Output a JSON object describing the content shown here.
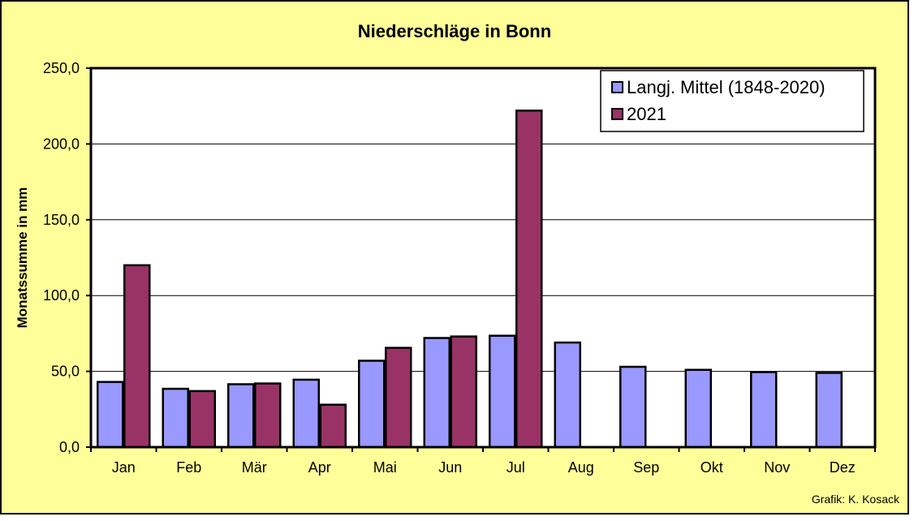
{
  "chart_data": {
    "type": "bar",
    "title": "Niederschläge in Bonn",
    "ylabel": "Monatssumme in mm",
    "xlabel": "",
    "ylim": [
      0,
      250
    ],
    "yticks": [
      0,
      50,
      100,
      150,
      200,
      250
    ],
    "ytick_labels": [
      "0,0",
      "50,0",
      "100,0",
      "150,0",
      "200,0",
      "250,0"
    ],
    "grid": true,
    "legend_position": "top-right",
    "categories": [
      "Jan",
      "Feb",
      "Mär",
      "Apr",
      "Mai",
      "Jun",
      "Jul",
      "Aug",
      "Sep",
      "Okt",
      "Nov",
      "Dez"
    ],
    "series": [
      {
        "name": "Langj. Mittel (1848-2020)",
        "color": "#9999ff",
        "values": [
          43,
          38.5,
          41.5,
          44.5,
          57,
          72,
          73.5,
          69,
          53,
          51,
          49.5,
          49
        ]
      },
      {
        "name": "2021",
        "color": "#993366",
        "values": [
          120,
          37,
          42,
          28,
          65.5,
          73,
          222,
          0,
          0,
          0,
          0,
          0
        ]
      }
    ]
  },
  "credit": "Grafik:  K. Kosack",
  "colors": {
    "background": "#ffff99",
    "plot_area": "#ffffff"
  }
}
